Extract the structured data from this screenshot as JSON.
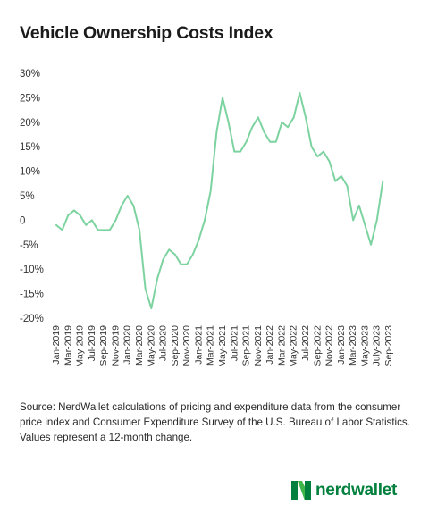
{
  "chart_data": {
    "type": "line",
    "title": "Vehicle Ownership Costs Index",
    "xlabel": "",
    "ylabel": "",
    "ylim": [
      -20,
      30
    ],
    "grid": false,
    "y_ticks": [
      "30%",
      "25%",
      "20%",
      "15%",
      "10%",
      "5%",
      "0",
      "-5%",
      "-10%",
      "-15%",
      "-20%"
    ],
    "y_tick_values": [
      30,
      25,
      20,
      15,
      10,
      5,
      0,
      -5,
      -10,
      -15,
      -20
    ],
    "x_tick_labels": [
      "Jan-2019",
      "Mar-2019",
      "May-2019",
      "Jul-2019",
      "Sep-2019",
      "Nov-2019",
      "Jan-2020",
      "Mar-2020",
      "May-2020",
      "Jul-2020",
      "Sep-2020",
      "Nov-2020",
      "Jan-2021",
      "Mar-2021",
      "May-2021",
      "Jul-2021",
      "Sep-2021",
      "Nov-2021",
      "Jan-2022",
      "Mar-2022",
      "May-2022",
      "Jul-2022",
      "Sep-2022",
      "Nov-2022",
      "Jan-2023",
      "Mar-2023",
      "May-2023",
      "July-2023",
      "Sep-2023"
    ],
    "series": [
      {
        "color": "#7dd3a0",
        "x": [
          "Jan-2019",
          "Feb-2019",
          "Mar-2019",
          "Apr-2019",
          "May-2019",
          "Jun-2019",
          "Jul-2019",
          "Aug-2019",
          "Sep-2019",
          "Oct-2019",
          "Nov-2019",
          "Dec-2019",
          "Jan-2020",
          "Feb-2020",
          "Mar-2020",
          "Apr-2020",
          "May-2020",
          "Jun-2020",
          "Jul-2020",
          "Aug-2020",
          "Sep-2020",
          "Oct-2020",
          "Nov-2020",
          "Dec-2020",
          "Jan-2021",
          "Feb-2021",
          "Mar-2021",
          "Apr-2021",
          "May-2021",
          "Jun-2021",
          "Jul-2021",
          "Aug-2021",
          "Sep-2021",
          "Oct-2021",
          "Nov-2021",
          "Dec-2021",
          "Jan-2022",
          "Feb-2022",
          "Mar-2022",
          "Apr-2022",
          "May-2022",
          "Jun-2022",
          "Jul-2022",
          "Aug-2022",
          "Sep-2022",
          "Oct-2022",
          "Nov-2022",
          "Dec-2022",
          "Jan-2023",
          "Feb-2023",
          "Mar-2023",
          "Apr-2023",
          "May-2023",
          "Jun-2023",
          "Jul-2023",
          "Aug-2023",
          "Sep-2023"
        ],
        "values": [
          -1,
          -2,
          1,
          2,
          1,
          -1,
          0,
          -2,
          -2,
          -2,
          0,
          3,
          5,
          3,
          -2,
          -14,
          -18,
          -12,
          -8,
          -6,
          -7,
          -9,
          -9,
          -7,
          -4,
          0,
          6,
          18,
          25,
          20,
          14,
          14,
          16,
          19,
          21,
          18,
          16,
          16,
          20,
          19,
          21,
          26,
          21,
          15,
          13,
          14,
          12,
          8,
          9,
          7,
          0,
          3,
          -1,
          -5,
          0,
          8,
          null
        ]
      }
    ]
  },
  "source_text": "Source: NerdWallet calculations of pricing and expenditure data from the consumer price index and Consumer Expenditure Survey of the U.S. Bureau of Labor Statistics. Values represent a 12-month change.",
  "logo": {
    "text": "nerdwallet",
    "color": "#007f3d"
  }
}
